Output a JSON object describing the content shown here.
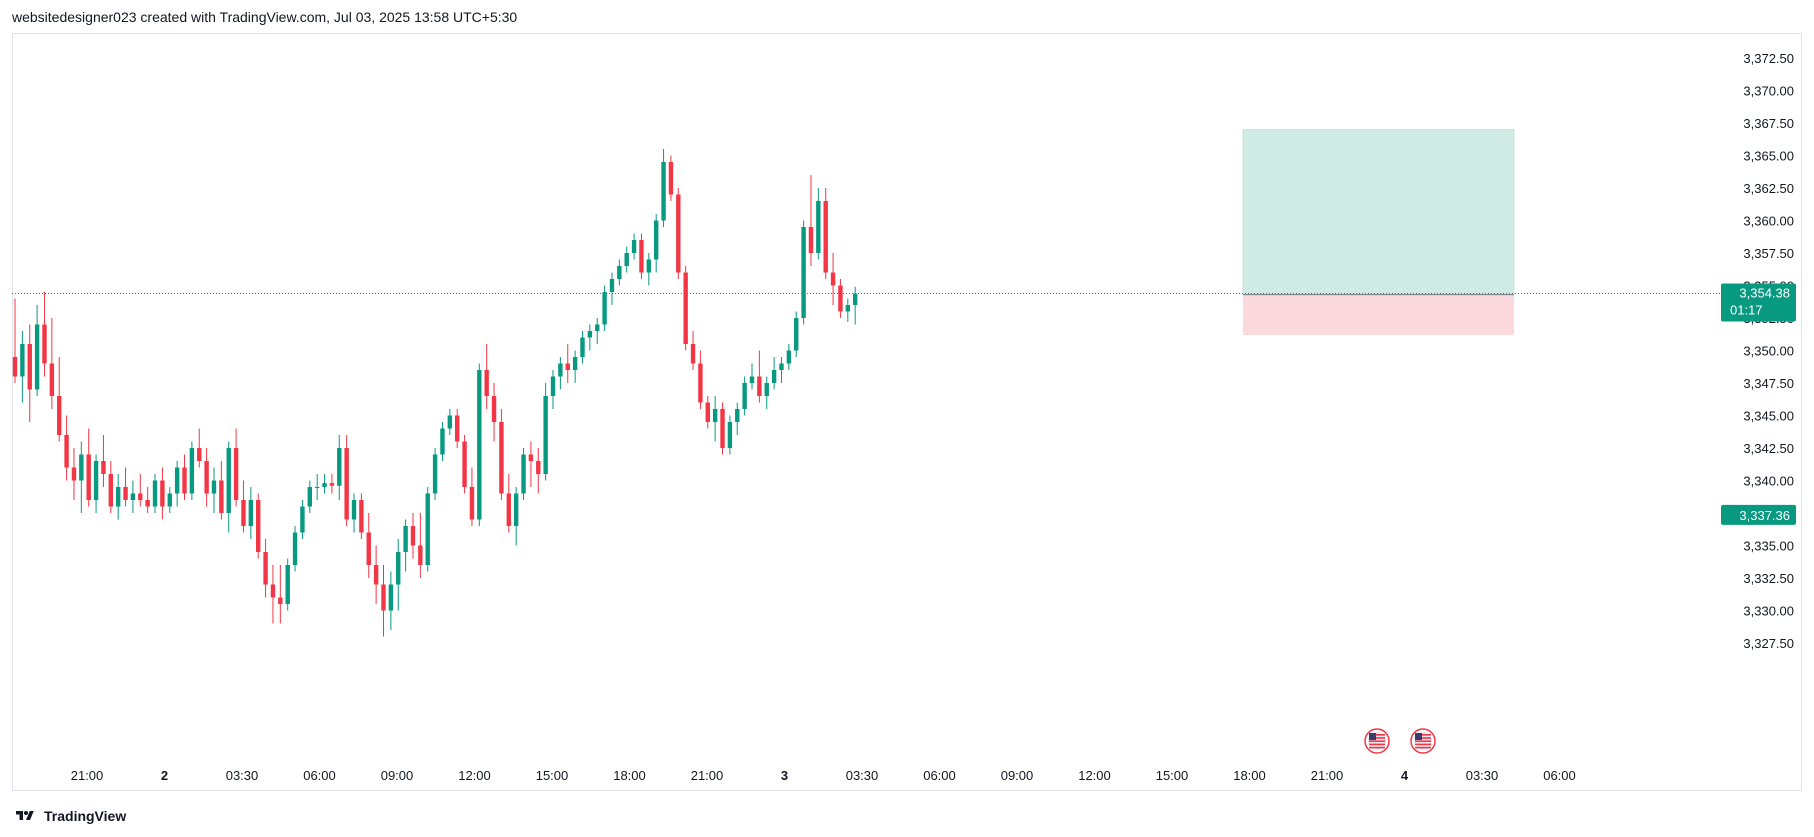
{
  "header": {
    "title": "websitedesigner023 created with TradingView.com, Jul 03, 2025 13:58 UTC+5:30"
  },
  "footer": {
    "brand": "TradingView"
  },
  "colors": {
    "up": "#089981",
    "down": "#f23645",
    "profit_zone": "#cfebe4",
    "loss_zone": "#fbd9dc",
    "grid": "#ffffff",
    "axis_text": "#131722"
  },
  "chart_data": {
    "type": "candlestick",
    "title": "",
    "x_ticks": [
      "21:00",
      "2",
      "03:30",
      "06:00",
      "09:00",
      "12:00",
      "15:00",
      "18:00",
      "21:00",
      "3",
      "03:30",
      "06:00",
      "09:00",
      "12:00",
      "15:00",
      "18:00",
      "21:00",
      "4",
      "03:30",
      "06:00"
    ],
    "x_ticks_bold": [
      false,
      true,
      false,
      false,
      false,
      false,
      false,
      false,
      false,
      true,
      false,
      false,
      false,
      false,
      false,
      false,
      false,
      true,
      false,
      false
    ],
    "y_ticks": [
      "3,372.50",
      "3,370.00",
      "3,367.50",
      "3,365.00",
      "3,362.50",
      "3,360.00",
      "3,357.50",
      "3,355.00",
      "3,352.50",
      "3,350.00",
      "3,347.50",
      "3,345.00",
      "3,342.50",
      "3,340.00",
      "3,337.50",
      "3,335.00",
      "3,332.50",
      "3,330.00",
      "3,327.50"
    ],
    "ylim": [
      3325.0,
      3375.0
    ],
    "current_price": {
      "value": 3354.38,
      "label": "3,354.38",
      "countdown": "01:17"
    },
    "marked_price": {
      "value": 3337.36,
      "label": "3,337.36"
    },
    "position_tool": {
      "entry": 3354.3,
      "target": 3367.0,
      "stop": 3351.2
    },
    "events": [
      "us-flag-icon",
      "us-flag-icon"
    ],
    "candles": [
      [
        3349.5,
        3354.0,
        3347.5,
        3348.0
      ],
      [
        3348.0,
        3351.5,
        3346.0,
        3350.5
      ],
      [
        3350.5,
        3352.0,
        3344.5,
        3347.0
      ],
      [
        3347.0,
        3353.5,
        3346.5,
        3352.0
      ],
      [
        3352.0,
        3354.5,
        3348.0,
        3349.0
      ],
      [
        3349.0,
        3352.5,
        3345.5,
        3346.5
      ],
      [
        3346.5,
        3349.5,
        3343.0,
        3343.5
      ],
      [
        3343.5,
        3345.0,
        3340.0,
        3341.0
      ],
      [
        3341.0,
        3342.5,
        3338.5,
        3340.0
      ],
      [
        3340.0,
        3343.0,
        3337.5,
        3342.0
      ],
      [
        3342.0,
        3344.0,
        3338.0,
        3338.5
      ],
      [
        3338.5,
        3342.0,
        3337.5,
        3341.5
      ],
      [
        3341.5,
        3343.5,
        3339.5,
        3340.5
      ],
      [
        3340.5,
        3341.5,
        3337.5,
        3338.0
      ],
      [
        3338.0,
        3340.5,
        3337.0,
        3339.5
      ],
      [
        3339.5,
        3341.0,
        3338.0,
        3338.5
      ],
      [
        3338.5,
        3340.0,
        3337.5,
        3339.0
      ],
      [
        3339.0,
        3340.5,
        3338.0,
        3338.5
      ],
      [
        3338.5,
        3339.5,
        3337.5,
        3338.0
      ],
      [
        3338.0,
        3340.5,
        3337.5,
        3340.0
      ],
      [
        3340.0,
        3341.0,
        3337.0,
        3338.0
      ],
      [
        3338.0,
        3339.5,
        3337.5,
        3339.0
      ],
      [
        3339.0,
        3341.5,
        3338.0,
        3341.0
      ],
      [
        3341.0,
        3342.0,
        3338.5,
        3339.0
      ],
      [
        3339.0,
        3343.0,
        3338.5,
        3342.5
      ],
      [
        3342.5,
        3344.0,
        3341.0,
        3341.5
      ],
      [
        3341.5,
        3342.5,
        3338.0,
        3339.0
      ],
      [
        3339.0,
        3341.0,
        3337.5,
        3340.0
      ],
      [
        3340.0,
        3341.5,
        3337.0,
        3337.5
      ],
      [
        3337.5,
        3343.0,
        3336.0,
        3342.5
      ],
      [
        3342.5,
        3344.0,
        3338.0,
        3338.5
      ],
      [
        3338.5,
        3340.0,
        3336.0,
        3336.5
      ],
      [
        3336.5,
        3339.5,
        3335.5,
        3338.5
      ],
      [
        3338.5,
        3339.0,
        3334.0,
        3334.5
      ],
      [
        3334.5,
        3335.5,
        3331.0,
        3332.0
      ],
      [
        3332.0,
        3333.5,
        3329.0,
        3331.0
      ],
      [
        3331.0,
        3333.5,
        3329.0,
        3330.5
      ],
      [
        3330.5,
        3334.0,
        3330.0,
        3333.5
      ],
      [
        3333.5,
        3336.5,
        3333.0,
        3336.0
      ],
      [
        3336.0,
        3338.5,
        3335.5,
        3338.0
      ],
      [
        3338.0,
        3340.0,
        3337.5,
        3339.5
      ],
      [
        3339.5,
        3340.5,
        3338.5,
        3339.5
      ],
      [
        3339.5,
        3340.5,
        3339.0,
        3339.8
      ],
      [
        3339.8,
        3340.5,
        3339.0,
        3339.6
      ],
      [
        3339.6,
        3343.5,
        3338.5,
        3342.5
      ],
      [
        3342.5,
        3343.5,
        3336.5,
        3337.0
      ],
      [
        3337.0,
        3339.0,
        3336.0,
        3338.5
      ],
      [
        3338.5,
        3339.0,
        3335.5,
        3336.0
      ],
      [
        3336.0,
        3337.5,
        3332.5,
        3333.5
      ],
      [
        3333.5,
        3335.0,
        3330.5,
        3332.0
      ],
      [
        3332.0,
        3333.5,
        3328.0,
        3330.0
      ],
      [
        3330.0,
        3333.0,
        3328.5,
        3332.0
      ],
      [
        3332.0,
        3335.5,
        3330.0,
        3334.5
      ],
      [
        3334.5,
        3337.0,
        3333.0,
        3336.5
      ],
      [
        3336.5,
        3337.5,
        3334.0,
        3335.0
      ],
      [
        3335.0,
        3337.5,
        3332.5,
        3333.5
      ],
      [
        3333.5,
        3339.5,
        3333.0,
        3339.0
      ],
      [
        3339.0,
        3342.5,
        3338.5,
        3342.0
      ],
      [
        3342.0,
        3344.5,
        3341.5,
        3344.0
      ],
      [
        3344.0,
        3345.5,
        3343.5,
        3345.0
      ],
      [
        3345.0,
        3345.5,
        3342.5,
        3343.0
      ],
      [
        3343.0,
        3343.5,
        3339.0,
        3339.5
      ],
      [
        3339.5,
        3341.0,
        3336.5,
        3337.0
      ],
      [
        3337.0,
        3349.0,
        3336.5,
        3348.5
      ],
      [
        3348.5,
        3350.5,
        3345.5,
        3346.5
      ],
      [
        3346.5,
        3347.5,
        3343.0,
        3344.5
      ],
      [
        3344.5,
        3345.5,
        3338.5,
        3339.0
      ],
      [
        3339.0,
        3340.5,
        3336.0,
        3336.5
      ],
      [
        3336.5,
        3339.5,
        3335.0,
        3339.0
      ],
      [
        3339.0,
        3342.5,
        3338.5,
        3342.0
      ],
      [
        3342.0,
        3343.0,
        3339.5,
        3341.5
      ],
      [
        3341.5,
        3342.5,
        3339.0,
        3340.5
      ],
      [
        3340.5,
        3347.5,
        3340.0,
        3346.5
      ],
      [
        3346.5,
        3348.5,
        3345.5,
        3348.0
      ],
      [
        3348.0,
        3349.5,
        3347.0,
        3349.0
      ],
      [
        3349.0,
        3350.5,
        3347.5,
        3348.5
      ],
      [
        3348.5,
        3350.0,
        3347.5,
        3349.5
      ],
      [
        3349.5,
        3351.5,
        3349.0,
        3351.0
      ],
      [
        3351.0,
        3352.0,
        3350.0,
        3351.5
      ],
      [
        3351.5,
        3352.5,
        3350.5,
        3352.0
      ],
      [
        3352.0,
        3355.0,
        3351.5,
        3354.5
      ],
      [
        3354.5,
        3356.0,
        3353.5,
        3355.5
      ],
      [
        3355.5,
        3357.0,
        3355.0,
        3356.5
      ],
      [
        3356.5,
        3358.0,
        3356.0,
        3357.5
      ],
      [
        3357.5,
        3359.0,
        3357.0,
        3358.5
      ],
      [
        3358.5,
        3359.0,
        3355.5,
        3356.0
      ],
      [
        3356.0,
        3357.5,
        3355.0,
        3357.0
      ],
      [
        3357.0,
        3360.5,
        3356.0,
        3360.0
      ],
      [
        3360.0,
        3365.5,
        3359.5,
        3364.5
      ],
      [
        3364.5,
        3365.0,
        3361.5,
        3362.0
      ],
      [
        3362.0,
        3362.5,
        3355.5,
        3356.0
      ],
      [
        3356.0,
        3356.5,
        3350.0,
        3350.5
      ],
      [
        3350.5,
        3351.5,
        3348.5,
        3349.0
      ],
      [
        3349.0,
        3350.0,
        3345.5,
        3346.0
      ],
      [
        3346.0,
        3346.5,
        3344.0,
        3344.5
      ],
      [
        3344.5,
        3346.5,
        3343.0,
        3345.5
      ],
      [
        3345.5,
        3346.0,
        3342.0,
        3342.5
      ],
      [
        3342.5,
        3345.0,
        3342.0,
        3344.5
      ],
      [
        3344.5,
        3346.0,
        3343.5,
        3345.5
      ],
      [
        3345.5,
        3348.0,
        3345.0,
        3347.5
      ],
      [
        3347.5,
        3349.0,
        3347.0,
        3348.0
      ],
      [
        3348.0,
        3350.0,
        3346.0,
        3346.5
      ],
      [
        3346.5,
        3348.0,
        3345.5,
        3347.5
      ],
      [
        3347.5,
        3349.5,
        3347.0,
        3348.5
      ],
      [
        3348.5,
        3349.5,
        3347.5,
        3349.0
      ],
      [
        3349.0,
        3350.5,
        3348.5,
        3350.0
      ],
      [
        3350.0,
        3353.0,
        3349.5,
        3352.5
      ],
      [
        3352.5,
        3360.0,
        3352.0,
        3359.5
      ],
      [
        3359.5,
        3363.5,
        3356.5,
        3357.5
      ],
      [
        3357.5,
        3362.5,
        3357.0,
        3361.5
      ],
      [
        3361.5,
        3362.5,
        3355.5,
        3356.0
      ],
      [
        3356.0,
        3357.5,
        3353.5,
        3355.0
      ],
      [
        3355.0,
        3355.5,
        3352.5,
        3353.0
      ],
      [
        3353.0,
        3354.0,
        3352.2,
        3353.5
      ],
      [
        3353.5,
        3354.9,
        3352.0,
        3354.38
      ]
    ]
  }
}
